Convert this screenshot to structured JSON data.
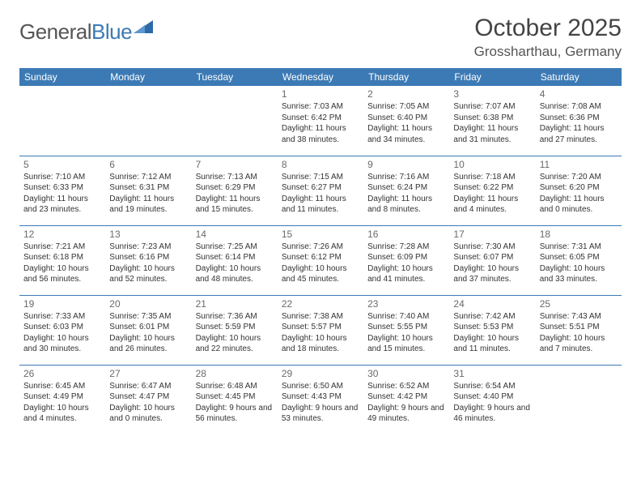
{
  "logo": {
    "word1": "General",
    "word2": "Blue"
  },
  "title": "October 2025",
  "location": "Grossharthau, Germany",
  "header_bg": "#3c7ab5",
  "weekdays": [
    "Sunday",
    "Monday",
    "Tuesday",
    "Wednesday",
    "Thursday",
    "Friday",
    "Saturday"
  ],
  "startOffset": 3,
  "days": [
    {
      "n": "1",
      "sunrise": "7:03 AM",
      "sunset": "6:42 PM",
      "dh": "11",
      "dm": "38"
    },
    {
      "n": "2",
      "sunrise": "7:05 AM",
      "sunset": "6:40 PM",
      "dh": "11",
      "dm": "34"
    },
    {
      "n": "3",
      "sunrise": "7:07 AM",
      "sunset": "6:38 PM",
      "dh": "11",
      "dm": "31"
    },
    {
      "n": "4",
      "sunrise": "7:08 AM",
      "sunset": "6:36 PM",
      "dh": "11",
      "dm": "27"
    },
    {
      "n": "5",
      "sunrise": "7:10 AM",
      "sunset": "6:33 PM",
      "dh": "11",
      "dm": "23"
    },
    {
      "n": "6",
      "sunrise": "7:12 AM",
      "sunset": "6:31 PM",
      "dh": "11",
      "dm": "19"
    },
    {
      "n": "7",
      "sunrise": "7:13 AM",
      "sunset": "6:29 PM",
      "dh": "11",
      "dm": "15"
    },
    {
      "n": "8",
      "sunrise": "7:15 AM",
      "sunset": "6:27 PM",
      "dh": "11",
      "dm": "11"
    },
    {
      "n": "9",
      "sunrise": "7:16 AM",
      "sunset": "6:24 PM",
      "dh": "11",
      "dm": "8"
    },
    {
      "n": "10",
      "sunrise": "7:18 AM",
      "sunset": "6:22 PM",
      "dh": "11",
      "dm": "4"
    },
    {
      "n": "11",
      "sunrise": "7:20 AM",
      "sunset": "6:20 PM",
      "dh": "11",
      "dm": "0"
    },
    {
      "n": "12",
      "sunrise": "7:21 AM",
      "sunset": "6:18 PM",
      "dh": "10",
      "dm": "56"
    },
    {
      "n": "13",
      "sunrise": "7:23 AM",
      "sunset": "6:16 PM",
      "dh": "10",
      "dm": "52"
    },
    {
      "n": "14",
      "sunrise": "7:25 AM",
      "sunset": "6:14 PM",
      "dh": "10",
      "dm": "48"
    },
    {
      "n": "15",
      "sunrise": "7:26 AM",
      "sunset": "6:12 PM",
      "dh": "10",
      "dm": "45"
    },
    {
      "n": "16",
      "sunrise": "7:28 AM",
      "sunset": "6:09 PM",
      "dh": "10",
      "dm": "41"
    },
    {
      "n": "17",
      "sunrise": "7:30 AM",
      "sunset": "6:07 PM",
      "dh": "10",
      "dm": "37"
    },
    {
      "n": "18",
      "sunrise": "7:31 AM",
      "sunset": "6:05 PM",
      "dh": "10",
      "dm": "33"
    },
    {
      "n": "19",
      "sunrise": "7:33 AM",
      "sunset": "6:03 PM",
      "dh": "10",
      "dm": "30"
    },
    {
      "n": "20",
      "sunrise": "7:35 AM",
      "sunset": "6:01 PM",
      "dh": "10",
      "dm": "26"
    },
    {
      "n": "21",
      "sunrise": "7:36 AM",
      "sunset": "5:59 PM",
      "dh": "10",
      "dm": "22"
    },
    {
      "n": "22",
      "sunrise": "7:38 AM",
      "sunset": "5:57 PM",
      "dh": "10",
      "dm": "18"
    },
    {
      "n": "23",
      "sunrise": "7:40 AM",
      "sunset": "5:55 PM",
      "dh": "10",
      "dm": "15"
    },
    {
      "n": "24",
      "sunrise": "7:42 AM",
      "sunset": "5:53 PM",
      "dh": "10",
      "dm": "11"
    },
    {
      "n": "25",
      "sunrise": "7:43 AM",
      "sunset": "5:51 PM",
      "dh": "10",
      "dm": "7"
    },
    {
      "n": "26",
      "sunrise": "6:45 AM",
      "sunset": "4:49 PM",
      "dh": "10",
      "dm": "4"
    },
    {
      "n": "27",
      "sunrise": "6:47 AM",
      "sunset": "4:47 PM",
      "dh": "10",
      "dm": "0"
    },
    {
      "n": "28",
      "sunrise": "6:48 AM",
      "sunset": "4:45 PM",
      "dh": "9",
      "dm": "56"
    },
    {
      "n": "29",
      "sunrise": "6:50 AM",
      "sunset": "4:43 PM",
      "dh": "9",
      "dm": "53"
    },
    {
      "n": "30",
      "sunrise": "6:52 AM",
      "sunset": "4:42 PM",
      "dh": "9",
      "dm": "49"
    },
    {
      "n": "31",
      "sunrise": "6:54 AM",
      "sunset": "4:40 PM",
      "dh": "9",
      "dm": "46"
    }
  ]
}
